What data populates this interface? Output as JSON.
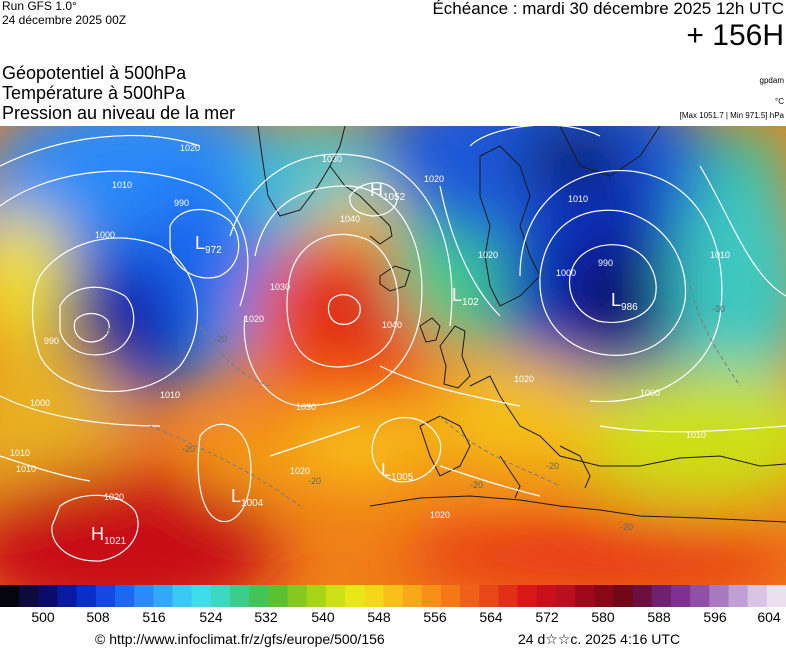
{
  "header": {
    "run": "Run GFS 1.0°",
    "run_date": "24 décembre 2025 00Z",
    "echeance": "Échéance : mardi 30 décembre 2025 12h UTC",
    "hour": "+ 156H",
    "titles": [
      "Géopotentiel à 500hPa",
      "Température à 500hPa",
      "Pression au niveau de la mer"
    ],
    "unit_geo": "gpdam",
    "unit_temp": "°C",
    "minmax": "[Max 1051.7 | Min 971.5] hPa"
  },
  "map": {
    "pressure_centers": [
      {
        "type": "L",
        "value": "972"
      },
      {
        "type": "H",
        "value": "1052"
      },
      {
        "type": "L",
        "value": "102"
      },
      {
        "type": "L",
        "value": "986"
      },
      {
        "type": "L",
        "value": "1005"
      },
      {
        "type": "L",
        "value": "1004"
      },
      {
        "type": "H",
        "value": "1021"
      }
    ],
    "isobar_labels": [
      "1020",
      "1010",
      "1000",
      "990",
      "1020",
      "1030",
      "1040",
      "1040",
      "1030",
      "1020",
      "1010",
      "1000",
      "990",
      "1010",
      "1020",
      "1030",
      "1020",
      "1000",
      "1010",
      "1010",
      "1020",
      "1020",
      "1020",
      "1010",
      "990",
      "1000",
      "1010"
    ],
    "temperature_labels": [
      "-20",
      "-20",
      "-30",
      "-20",
      "-20",
      "-20",
      "-20",
      "-20"
    ],
    "colors": {
      "low": "#0b0a6e",
      "mid": "#f2e41a",
      "high": "#d8101a",
      "isobar": "#ffffff",
      "coast": "#1a1a1a"
    }
  },
  "scale": {
    "labels": [
      "500",
      "508",
      "516",
      "524",
      "532",
      "540",
      "548",
      "556",
      "564",
      "572",
      "580",
      "588",
      "596",
      "604"
    ],
    "colors": [
      "#050510",
      "#0d0a3c",
      "#0b0b6e",
      "#0a1aa0",
      "#0a2ec8",
      "#1448e0",
      "#1c68f0",
      "#2a8af8",
      "#34a8f8",
      "#3cc8f4",
      "#40dce8",
      "#3ed8c0",
      "#3ccc8c",
      "#44c458",
      "#5cc030",
      "#84c820",
      "#a8d418",
      "#cce018",
      "#e8e818",
      "#f4d818",
      "#f8c018",
      "#f8a818",
      "#f89018",
      "#f47818",
      "#f06018",
      "#e84818",
      "#e03018",
      "#d81818",
      "#c8101c",
      "#b8101e",
      "#a0081c",
      "#880818",
      "#700818",
      "#6a1040",
      "#702070",
      "#803090",
      "#9050a8",
      "#a878c0",
      "#c0a0d4",
      "#d8c4e4",
      "#ece0f0"
    ]
  },
  "footer": {
    "url": "© http://www.infoclimat.fr/z/gfs/europe/500/156",
    "stamp": "24 d☆☆c. 2025  4:16 UTC"
  }
}
